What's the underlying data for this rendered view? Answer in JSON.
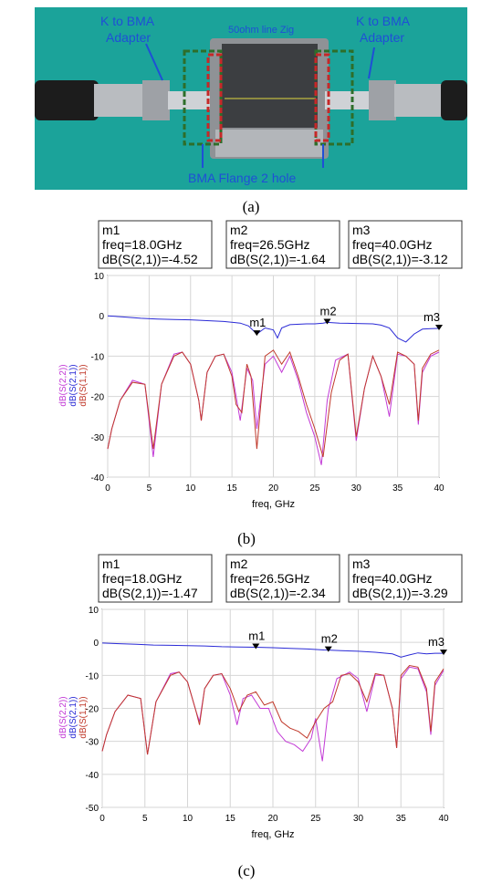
{
  "photo": {
    "labels": {
      "adapter_left": [
        "K to BMA",
        "Adapter"
      ],
      "adapter_right": [
        "K to BMA",
        "Adapter"
      ],
      "zig": "50ohm line Zig",
      "flange": "BMA Flange 2 hole"
    },
    "colors": {
      "background": "#1ba39a",
      "label": "#1f4fd6",
      "box_green": "#2e6e2a",
      "box_red": "#c62828"
    }
  },
  "panels": {
    "a": "(a)",
    "b": "(b)",
    "c": "(c)"
  },
  "chart_data": [
    {
      "type": "line",
      "panel": "(b)",
      "xlabel": "freq, GHz",
      "xlim": [
        0,
        40
      ],
      "ylim": [
        -40,
        10
      ],
      "xticks": [
        0,
        5,
        10,
        15,
        20,
        25,
        30,
        35,
        40
      ],
      "yticks": [
        10,
        0,
        -10,
        -20,
        -30,
        -40
      ],
      "ylabels": [
        "dB(S(2,2))",
        "dB(S(2,1))",
        "dB(S(1,1))"
      ],
      "grid": true,
      "markers": [
        {
          "name": "m1",
          "freq_text": "freq=18.0GHz",
          "value_text": "dB(S(2,1))=-4.52",
          "x": 18.0,
          "y": -4.52
        },
        {
          "name": "m2",
          "freq_text": "freq=26.5GHz",
          "value_text": "dB(S(2,1))=-1.64",
          "x": 26.5,
          "y": -1.64
        },
        {
          "name": "m3",
          "freq_text": "freq=40.0GHz",
          "value_text": "dB(S(2,1))=-3.12",
          "x": 40.0,
          "y": -3.12
        }
      ],
      "series": [
        {
          "name": "dB(S(2,1))",
          "color": "#2a2ad6",
          "x": [
            0,
            2,
            4,
            6,
            8,
            10,
            12,
            14,
            16,
            17,
            18,
            19,
            20,
            20.5,
            21,
            22,
            24,
            25,
            26,
            26.5,
            28,
            30,
            32,
            33,
            34,
            35,
            36,
            37,
            38,
            39,
            40
          ],
          "y": [
            0,
            -0.3,
            -0.6,
            -0.8,
            -0.9,
            -1.0,
            -1.2,
            -1.4,
            -1.8,
            -2.5,
            -4.5,
            -3.0,
            -3.5,
            -5.5,
            -3.0,
            -2.2,
            -2.0,
            -2.0,
            -1.8,
            -1.64,
            -1.8,
            -1.9,
            -2.0,
            -2.3,
            -3.0,
            -5.5,
            -6.5,
            -4.5,
            -3.3,
            -3.2,
            -3.12
          ]
        },
        {
          "name": "dB(S(1,1))",
          "color": "#c0392b",
          "x": [
            0,
            0.5,
            1.5,
            3,
            4.5,
            5.5,
            6.5,
            8,
            9,
            10,
            11,
            11.3,
            12,
            13,
            14,
            15,
            15.5,
            16.2,
            16.8,
            17.3,
            18,
            19,
            20,
            21,
            22,
            23,
            24,
            25,
            26,
            27,
            28,
            29,
            30,
            31,
            32,
            33,
            34,
            35,
            36,
            37,
            37.5,
            38,
            39,
            40
          ],
          "y": [
            -33,
            -28,
            -21,
            -16.5,
            -17,
            -33,
            -17,
            -10,
            -9,
            -12,
            -21,
            -26,
            -14,
            -10,
            -9.5,
            -15,
            -22,
            -24,
            -12,
            -15,
            -33,
            -10,
            -8.5,
            -12,
            -9,
            -15,
            -22,
            -28,
            -35,
            -19,
            -11,
            -9.5,
            -30,
            -18,
            -10,
            -15,
            -22,
            -9,
            -10,
            -12,
            -26,
            -13,
            -9.5,
            -8.5
          ]
        },
        {
          "name": "dB(S(2,2))",
          "color": "#c23ad6",
          "x": [
            0,
            0.5,
            1.5,
            3,
            4.5,
            5.5,
            6.5,
            8,
            9,
            10,
            11,
            11.3,
            12,
            13,
            14,
            15,
            15.5,
            16,
            16.8,
            17.5,
            18,
            19,
            20,
            21,
            22,
            23,
            24,
            25,
            25.8,
            26.5,
            27.5,
            29,
            30,
            31,
            32,
            33,
            34,
            35,
            36,
            37,
            37.5,
            38,
            39,
            40
          ],
          "y": [
            -33,
            -28,
            -21,
            -16,
            -17,
            -35,
            -17,
            -9.5,
            -9,
            -12,
            -21,
            -26,
            -14,
            -10,
            -9.5,
            -14,
            -20,
            -26,
            -13,
            -16,
            -28,
            -12,
            -10,
            -14,
            -10,
            -16,
            -24,
            -30,
            -37,
            -21,
            -11,
            -9.5,
            -31,
            -18,
            -10,
            -15,
            -25,
            -9.5,
            -10,
            -12,
            -27,
            -14,
            -10,
            -9
          ]
        }
      ]
    },
    {
      "type": "line",
      "panel": "(c)",
      "xlabel": "freq, GHz",
      "xlim": [
        0,
        40
      ],
      "ylim": [
        -50,
        10
      ],
      "xticks": [
        0,
        5,
        10,
        15,
        20,
        25,
        30,
        35,
        40
      ],
      "yticks": [
        10,
        0,
        -10,
        -20,
        -30,
        -40,
        -50
      ],
      "ylabels": [
        "dB(S(2,2))",
        "dB(S(2,1))",
        "dB(S(1,1))"
      ],
      "grid": true,
      "markers": [
        {
          "name": "m1",
          "freq_text": "freq=18.0GHz",
          "value_text": "dB(S(2,1))=-1.47",
          "x": 18.0,
          "y": -1.47
        },
        {
          "name": "m2",
          "freq_text": "freq=26.5GHz",
          "value_text": "dB(S(2,1))=-2.34",
          "x": 26.5,
          "y": -2.34
        },
        {
          "name": "m3",
          "freq_text": "freq=40.0GHz",
          "value_text": "dB(S(2,1))=-3.29",
          "x": 40.0,
          "y": -3.29
        }
      ],
      "series": [
        {
          "name": "dB(S(2,1))",
          "color": "#2a2ad6",
          "x": [
            0,
            2,
            4,
            6,
            8,
            10,
            12,
            14,
            16,
            18,
            20,
            22,
            24,
            26,
            26.5,
            28,
            30,
            32,
            34,
            35,
            36,
            37,
            38,
            39,
            40
          ],
          "y": [
            -0.2,
            -0.4,
            -0.6,
            -0.8,
            -0.9,
            -1.0,
            -1.1,
            -1.3,
            -1.4,
            -1.47,
            -1.6,
            -1.8,
            -2.0,
            -2.3,
            -2.34,
            -2.5,
            -2.7,
            -3.0,
            -3.5,
            -4.5,
            -3.8,
            -3.2,
            -3.5,
            -3.3,
            -3.29
          ]
        },
        {
          "name": "dB(S(1,1))",
          "color": "#c0392b",
          "x": [
            0,
            0.5,
            1.5,
            3,
            4.5,
            5.3,
            6.3,
            8,
            9,
            10,
            11,
            11.4,
            12,
            13,
            14,
            15,
            16,
            17,
            18,
            19,
            20,
            21,
            22,
            23,
            24,
            25,
            26,
            27,
            28,
            29,
            30,
            31,
            32,
            33,
            34,
            34.5,
            35,
            36,
            37,
            38,
            38.5,
            39,
            40
          ],
          "y": [
            -33,
            -28,
            -21,
            -16,
            -17,
            -34,
            -18,
            -10,
            -9,
            -12,
            -21,
            -25,
            -14,
            -10,
            -9.5,
            -14,
            -21,
            -16,
            -15,
            -19,
            -18,
            -24,
            -26,
            -27,
            -29,
            -24,
            -20,
            -18,
            -10,
            -9.5,
            -12,
            -18,
            -9.5,
            -10,
            -20,
            -32,
            -10,
            -7,
            -7.5,
            -14,
            -27,
            -12,
            -8
          ]
        },
        {
          "name": "dB(S(2,2))",
          "color": "#c23ad6",
          "x": [
            0,
            0.5,
            1.5,
            3,
            4.5,
            5.3,
            6.3,
            8,
            9,
            10,
            11,
            11.4,
            12,
            13,
            14,
            15,
            15.8,
            16.5,
            17.5,
            18.5,
            19.5,
            20.5,
            21.5,
            22.5,
            23.5,
            24.5,
            25,
            25.8,
            26.5,
            27.5,
            29,
            30,
            31,
            32,
            33,
            34,
            34.5,
            35,
            36,
            37,
            38,
            38.5,
            39,
            40
          ],
          "y": [
            -33,
            -28,
            -21,
            -16,
            -17,
            -34,
            -18,
            -9.5,
            -9,
            -12,
            -21,
            -24,
            -14,
            -10,
            -9.5,
            -16,
            -25,
            -17,
            -16,
            -20,
            -20,
            -27,
            -30,
            -31,
            -33,
            -29,
            -23,
            -36,
            -20,
            -11,
            -9,
            -11,
            -21,
            -10,
            -10,
            -20,
            -32,
            -11,
            -7.5,
            -8,
            -15,
            -28,
            -13,
            -8.5
          ]
        }
      ]
    }
  ]
}
